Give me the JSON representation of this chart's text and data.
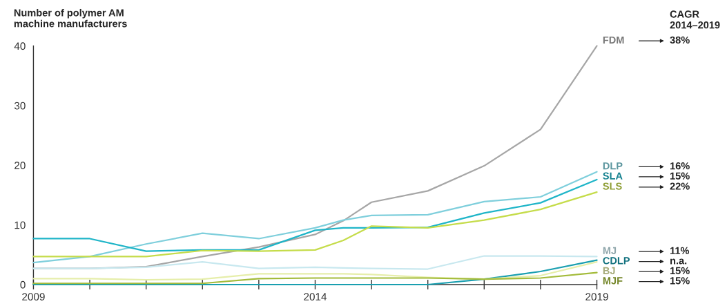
{
  "chart_data": {
    "type": "line",
    "ylabel": "Number of polymer AM\nmachine manufacturers",
    "legend_title": "CAGR\n2014–2019",
    "x": [
      2009,
      2010,
      2011,
      2012,
      2013,
      2014,
      2014.5,
      2015,
      2016,
      2017,
      2018,
      2019
    ],
    "series": [
      {
        "name": "FDM",
        "color": "#a6a6a6",
        "values": [
          2.7,
          2.7,
          3.0,
          4.7,
          6.3,
          8.4,
          10.7,
          13.8,
          15.7,
          19.9,
          26,
          40
        ]
      },
      {
        "name": "DLP",
        "color": "#7fcfdc",
        "values": [
          3.7,
          4.7,
          6.8,
          8.6,
          7.7,
          9.5,
          10.8,
          11.6,
          11.7,
          13.9,
          14.7,
          18.9
        ]
      },
      {
        "name": "SLA",
        "color": "#1fb5c8",
        "values": [
          7.7,
          7.7,
          5.6,
          5.8,
          5.8,
          9.1,
          9.5,
          9.5,
          9.6,
          12.0,
          13.7,
          17.6
        ]
      },
      {
        "name": "SLS",
        "color": "#c5dc4a",
        "values": [
          4.7,
          4.7,
          4.7,
          5.7,
          5.6,
          5.8,
          7.4,
          9.8,
          9.5,
          10.8,
          12.6,
          15.5
        ]
      },
      {
        "name": "MJ",
        "color": "#c8e8ef",
        "values": [
          2.7,
          2.7,
          2.9,
          3.8,
          2.7,
          2.9,
          2.8,
          2.7,
          2.6,
          4.8,
          4.8,
          4.7
        ]
      },
      {
        "name": "CDLP",
        "color": "#1a9fb0",
        "values": [
          0,
          0,
          0,
          0,
          0,
          0,
          0,
          0,
          0,
          0.9,
          2.2,
          4.1
        ]
      },
      {
        "name": "BJ",
        "color": "#e6eeaa",
        "values": [
          1.0,
          1.0,
          0.8,
          0.9,
          1.8,
          1.8,
          1.8,
          1.7,
          1.2,
          0.9,
          1.5,
          3.8
        ]
      },
      {
        "name": "MJF",
        "color": "#a3bb3a",
        "values": [
          0.2,
          0.2,
          0.2,
          0.2,
          1.0,
          1.1,
          1.1,
          1.1,
          1.1,
          0.9,
          1.1,
          2.0
        ]
      }
    ],
    "annotations": [
      "38%",
      "16%",
      "15%",
      "22%",
      "11%",
      "n.a.",
      "15%",
      "15%"
    ],
    "xlim": [
      2009,
      2019
    ],
    "xticks": [
      2009,
      {
        "value": 2010,
        "label": null
      },
      {
        "value": 2011,
        "label": null
      },
      {
        "value": 2012,
        "label": null
      },
      {
        "value": 2013,
        "label": null
      },
      2014,
      {
        "value": 2015,
        "label": null
      },
      {
        "value": 2016,
        "label": null
      },
      {
        "value": 2017,
        "label": null
      },
      {
        "value": 2018,
        "label": null
      },
      2019
    ],
    "ylim": [
      0,
      40
    ],
    "yticks": [
      0,
      10,
      20,
      30,
      40
    ],
    "grid": false,
    "legend": false,
    "line_style": "solid"
  }
}
